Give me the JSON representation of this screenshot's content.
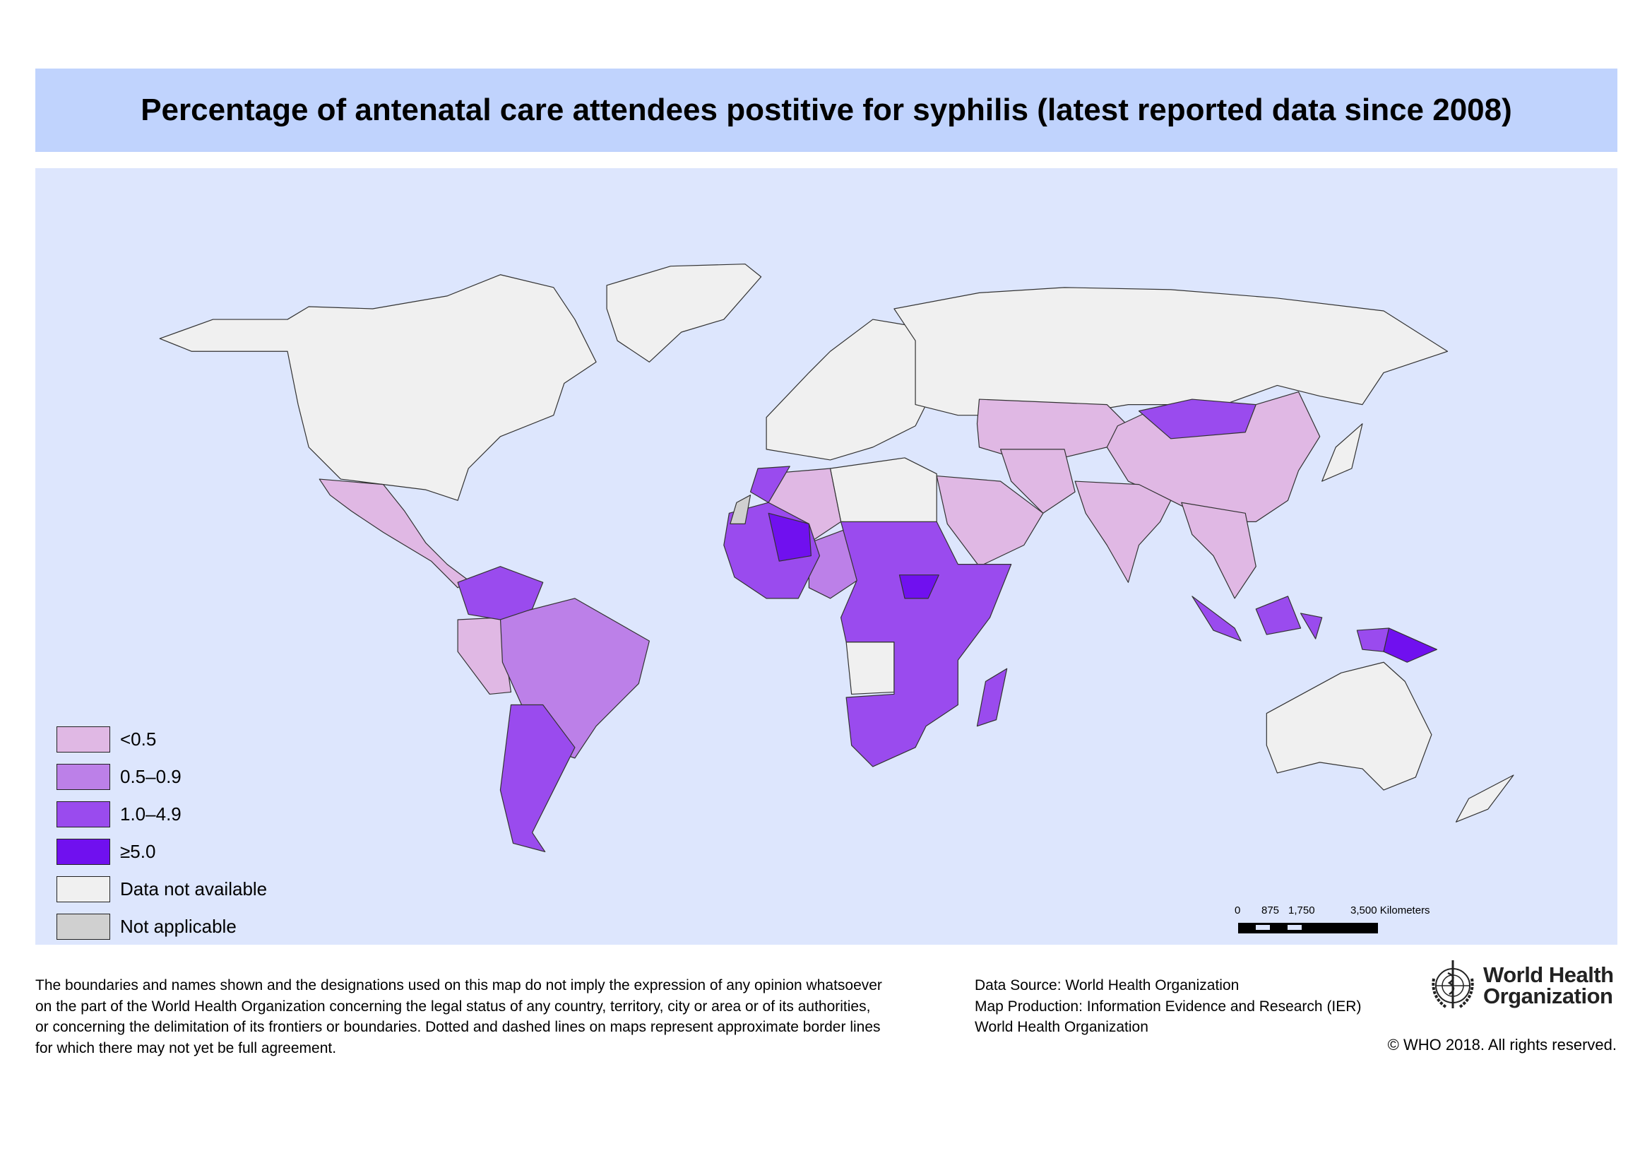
{
  "title": "Percentage of antenatal care attendees postitive for syphilis (latest reported data since 2008)",
  "legend": [
    {
      "label": "<0.5",
      "color": "#e0b8e4"
    },
    {
      "label": "0.5–0.9",
      "color": "#bc80e8"
    },
    {
      "label": "1.0–4.9",
      "color": "#9a4bee"
    },
    {
      "label": "≥5.0",
      "color": "#7010ef"
    },
    {
      "label": "Data not available",
      "color": "#f0f0f0"
    },
    {
      "label": "Not applicable",
      "color": "#d0d0d0"
    }
  ],
  "colors": {
    "ocean": "#dde6fd",
    "title_bar": "#c0d3fd",
    "border": "#333333"
  },
  "scale_bar": {
    "labels": [
      "0",
      "875",
      "1,750",
      "3,500 Kilometers"
    ]
  },
  "disclaimer": "The boundaries and names shown and the designations used on this map do not imply the expression of any opinion whatsoever on the part of the World Health Organization concerning the legal status of any country, territory, city or area or of its authorities, or concerning the delimitation of its frontiers or boundaries. Dotted and dashed lines on maps represent approximate border lines for which there may not yet be full agreement.",
  "source": {
    "line1": "Data Source: World Health Organization",
    "line2": "Map Production: Information Evidence and Research (IER)",
    "line3": "World Health Organization"
  },
  "logo": {
    "line1": "World Health",
    "line2": "Organization"
  },
  "copyright": "© WHO 2018. All rights reserved."
}
